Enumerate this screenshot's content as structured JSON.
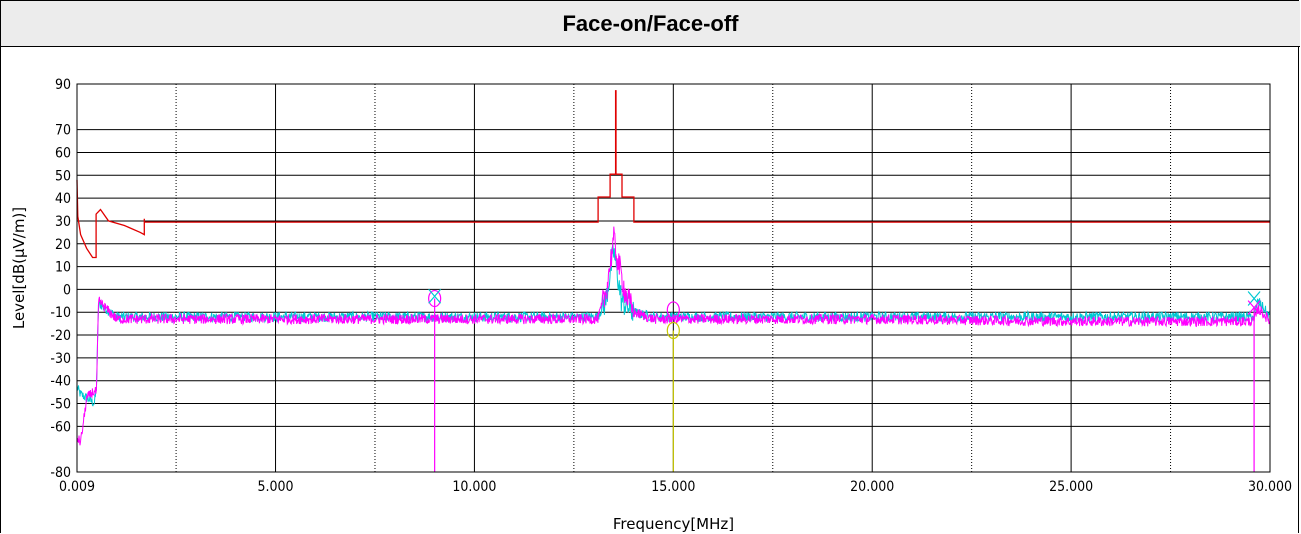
{
  "chart_data": {
    "type": "line",
    "title": "Face-on/Face-off",
    "xlabel": "Frequency[MHz]",
    "ylabel": "Level[dB(µV/m)]",
    "xlim": [
      0.009,
      30.0
    ],
    "ylim": [
      -80,
      90
    ],
    "x_tick_values": [
      0.009,
      5,
      10,
      15,
      20,
      25,
      30
    ],
    "x_tick_labels": [
      "0.009",
      "5.000",
      "10.000",
      "15.000",
      "20.000",
      "25.000",
      "30.000"
    ],
    "y_tick_values": [
      90,
      70,
      60,
      50,
      40,
      30,
      20,
      10,
      0,
      -10,
      -20,
      -30,
      -40,
      -50,
      -60,
      -80
    ],
    "y_tick_labels": [
      "90",
      "70",
      "60",
      "50",
      "40",
      "30",
      "20",
      "10",
      "0",
      "-10",
      "-20",
      "-30",
      "-40",
      "-50",
      "-60",
      "-80"
    ],
    "grid": true,
    "series": [
      {
        "color": "#e00000",
        "points": [
          [
            0.009,
            48
          ],
          [
            0.03,
            32
          ],
          [
            0.1,
            24
          ],
          [
            0.25,
            18
          ],
          [
            0.4,
            14
          ],
          [
            0.49,
            14
          ],
          [
            0.49,
            33
          ],
          [
            0.6,
            35
          ],
          [
            0.8,
            30
          ],
          [
            1.2,
            28
          ],
          [
            1.6,
            25
          ],
          [
            1.7,
            24
          ],
          [
            1.7,
            31
          ],
          [
            1.7,
            29.5
          ],
          [
            13.11,
            29.5
          ],
          [
            13.11,
            40.5
          ],
          [
            13.41,
            40.5
          ],
          [
            13.41,
            50.5
          ],
          [
            13.55,
            50.5
          ],
          [
            13.55,
            87
          ],
          [
            13.56,
            87
          ],
          [
            13.56,
            50.5
          ],
          [
            13.71,
            50.5
          ],
          [
            13.71,
            40.5
          ],
          [
            14.01,
            40.5
          ],
          [
            14.01,
            29.5
          ],
          [
            30,
            29.5
          ]
        ]
      },
      {
        "color": "#00c8d2",
        "points": [
          [
            0.009,
            -43
          ],
          [
            0.1,
            -46
          ],
          [
            0.3,
            -48
          ],
          [
            0.45,
            -50
          ],
          [
            0.5,
            -42
          ],
          [
            0.55,
            -6
          ],
          [
            1,
            -12
          ],
          [
            3,
            -12
          ],
          [
            5,
            -12
          ],
          [
            7,
            -12
          ],
          [
            9,
            -12
          ],
          [
            12,
            -12
          ],
          [
            13.1,
            -12
          ],
          [
            13.3,
            -5
          ],
          [
            13.5,
            17
          ],
          [
            13.7,
            -5
          ],
          [
            14,
            -10
          ],
          [
            14.5,
            -12
          ],
          [
            16,
            -12
          ],
          [
            20,
            -12
          ],
          [
            25,
            -12
          ],
          [
            29.6,
            -12
          ],
          [
            29.7,
            -5
          ],
          [
            30,
            -12
          ]
        ]
      },
      {
        "color": "#ff00ff",
        "points": [
          [
            0.009,
            -65
          ],
          [
            0.1,
            -67
          ],
          [
            0.25,
            -48
          ],
          [
            0.4,
            -45
          ],
          [
            0.5,
            -45
          ],
          [
            0.55,
            -5
          ],
          [
            1,
            -13
          ],
          [
            3,
            -13
          ],
          [
            5,
            -13
          ],
          [
            7,
            -13
          ],
          [
            9,
            -13
          ],
          [
            12,
            -13
          ],
          [
            13.1,
            -13
          ],
          [
            13.3,
            -2
          ],
          [
            13.5,
            22
          ],
          [
            13.6,
            13
          ],
          [
            13.8,
            -2
          ],
          [
            14,
            -10
          ],
          [
            14.5,
            -13
          ],
          [
            16,
            -13
          ],
          [
            20,
            -13
          ],
          [
            25,
            -14
          ],
          [
            29.6,
            -14
          ],
          [
            29.7,
            -8
          ],
          [
            30,
            -14
          ]
        ]
      }
    ],
    "markers": [
      {
        "x": 9.0,
        "y": -4,
        "color": "#ff00ff",
        "shape": "circle"
      },
      {
        "x": 9.0,
        "y": -3,
        "color": "#00c8d2",
        "shape": "cross"
      },
      {
        "x": 15.0,
        "y": -9,
        "color": "#ff00ff",
        "shape": "circle"
      },
      {
        "x": 15.0,
        "y": -18,
        "color": "#c8c800",
        "shape": "circle"
      },
      {
        "x": 29.6,
        "y": -4,
        "color": "#00c8d2",
        "shape": "cross"
      },
      {
        "x": 29.6,
        "y": -8,
        "color": "#ff00ff",
        "shape": "cross"
      }
    ],
    "marker_lines": [
      {
        "x": 9.0,
        "y_top": -4,
        "color": "#ff00ff"
      },
      {
        "x": 15.0,
        "y_top": -18,
        "color": "#c8c800"
      },
      {
        "x": 29.6,
        "y_top": -8,
        "color": "#ff00ff"
      }
    ]
  }
}
